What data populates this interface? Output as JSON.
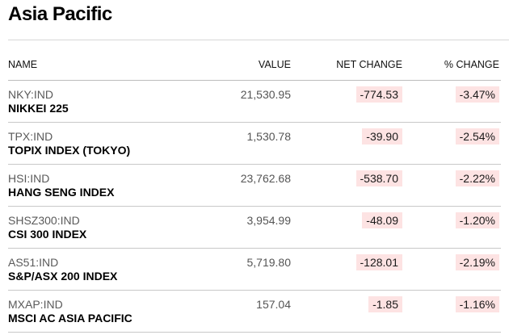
{
  "section": {
    "title": "Asia Pacific"
  },
  "table": {
    "headers": {
      "name": "NAME",
      "value": "VALUE",
      "net_change": "NET CHANGE",
      "pct_change": "% CHANGE"
    },
    "rows": [
      {
        "ticker": "NKY:IND",
        "name": "NIKKEI 225",
        "value": "21,530.95",
        "net_change": "-774.53",
        "pct_change": "-3.47%"
      },
      {
        "ticker": "TPX:IND",
        "name": "TOPIX INDEX (TOKYO)",
        "value": "1,530.78",
        "net_change": "-39.90",
        "pct_change": "-2.54%"
      },
      {
        "ticker": "HSI:IND",
        "name": "HANG SENG INDEX",
        "value": "23,762.68",
        "net_change": "-538.70",
        "pct_change": "-2.22%"
      },
      {
        "ticker": "SHSZ300:IND",
        "name": "CSI 300 INDEX",
        "value": "3,954.99",
        "net_change": "-48.09",
        "pct_change": "-1.20%"
      },
      {
        "ticker": "AS51:IND",
        "name": "S&P/ASX 200 INDEX",
        "value": "5,719.80",
        "net_change": "-128.01",
        "pct_change": "-2.19%"
      },
      {
        "ticker": "MXAP:IND",
        "name": "MSCI AC ASIA PACIFIC",
        "value": "157.04",
        "net_change": "-1.85",
        "pct_change": "-1.16%"
      }
    ]
  },
  "colors": {
    "negative_highlight": "#fde3e3",
    "title_text": "#000000",
    "ticker_text": "#5a5a5a"
  }
}
